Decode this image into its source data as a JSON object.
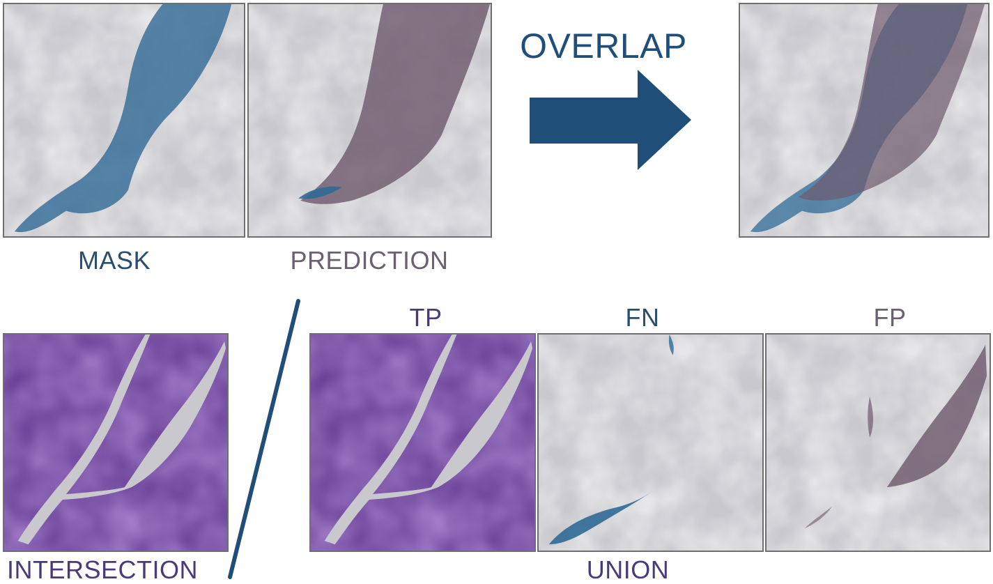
{
  "labels": {
    "mask": "MASK",
    "prediction": "PREDICTION",
    "overlap": "OVERLAP",
    "intersection": "INTERSECTION",
    "tp": "TP",
    "fn": "FN",
    "fp": "FP",
    "union": "UNION"
  },
  "colors": {
    "mask_label": "#2a4d6e",
    "prediction_label": "#6b6070",
    "overlap": "#1f4e79",
    "intersection_label": "#4a3a7a",
    "tp_label": "#4a3a7a",
    "fn_label": "#2a4d6e",
    "fp_label": "#6b6070",
    "union_label": "#4a3a7a",
    "mask_fill": "#2f6a96",
    "prediction_fill": "#6e5a6e",
    "purple_fill": "#5a2e88",
    "divider": "#1f4e79"
  }
}
